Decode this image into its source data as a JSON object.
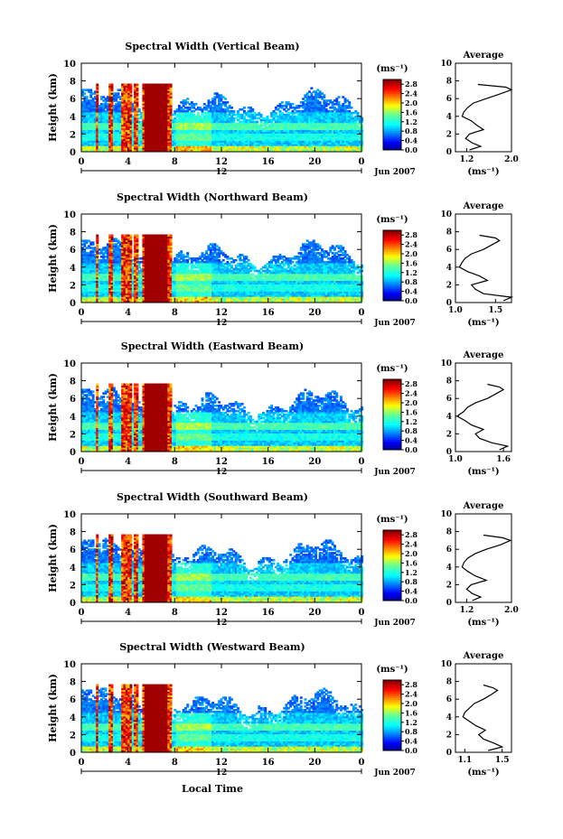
{
  "figure": {
    "xlabel": "Local Time",
    "date_label": "Jun 2007",
    "day_label": "12",
    "height_label": "Height (km)",
    "unit_label": "(ms⁻¹)",
    "average_title": "Average"
  },
  "chart_data": [
    {
      "type": "heatmap",
      "title": "Spectral Width (Vertical Beam)",
      "x_ticks": [
        "0",
        "4",
        "8",
        "12",
        "16",
        "20",
        "0"
      ],
      "y_ticks": [
        "0",
        "2",
        "4",
        "6",
        "8",
        "10"
      ],
      "xlim": [
        0,
        24
      ],
      "ylim": [
        0,
        10
      ],
      "colorbar_ticks": [
        "0.0",
        "0.4",
        "0.8",
        "1.2",
        "1.6",
        "2.0",
        "2.4",
        "2.8"
      ],
      "colorbar_range": [
        0,
        3.0
      ],
      "profile": {
        "type": "line",
        "xlim": [
          1.0,
          2.0
        ],
        "ylim": [
          0,
          10
        ],
        "x_ticks": [
          "1.2",
          "2.0"
        ],
        "x_tick_values": [
          1.2,
          2.0
        ],
        "y_ticks": [
          "0",
          "2",
          "4",
          "6",
          "8",
          "10"
        ],
        "heights": [
          0.2,
          0.6,
          1.0,
          1.5,
          2.0,
          2.5,
          3.0,
          3.5,
          4.0,
          4.5,
          5.0,
          5.5,
          6.0,
          6.5,
          7.0,
          7.3,
          7.6
        ],
        "values": [
          1.25,
          1.45,
          1.3,
          1.18,
          1.25,
          1.5,
          1.38,
          1.28,
          1.12,
          1.15,
          1.22,
          1.32,
          1.55,
          1.78,
          2.0,
          1.9,
          1.4
        ]
      }
    },
    {
      "type": "heatmap",
      "title": "Spectral Width (Northward Beam)",
      "x_ticks": [
        "0",
        "4",
        "8",
        "12",
        "16",
        "20",
        "0"
      ],
      "y_ticks": [
        "0",
        "2",
        "4",
        "6",
        "8",
        "10"
      ],
      "xlim": [
        0,
        24
      ],
      "ylim": [
        0,
        10
      ],
      "colorbar_ticks": [
        "0.0",
        "0.4",
        "0.8",
        "1.2",
        "1.6",
        "2.0",
        "2.4",
        "2.8"
      ],
      "colorbar_range": [
        0,
        3.0
      ],
      "profile": {
        "type": "line",
        "xlim": [
          1.0,
          1.7
        ],
        "ylim": [
          0,
          10
        ],
        "x_ticks": [
          "1.0",
          "1.5"
        ],
        "x_tick_values": [
          1.0,
          1.5
        ],
        "y_ticks": [
          "0",
          "2",
          "4",
          "6",
          "8",
          "10"
        ],
        "heights": [
          0.2,
          0.6,
          1.0,
          1.5,
          2.0,
          2.5,
          3.0,
          3.5,
          4.0,
          4.5,
          5.0,
          5.5,
          6.0,
          6.5,
          7.0,
          7.3,
          7.6
        ],
        "values": [
          1.6,
          1.7,
          1.35,
          1.25,
          1.2,
          1.4,
          1.3,
          1.15,
          1.05,
          1.08,
          1.12,
          1.2,
          1.35,
          1.45,
          1.55,
          1.5,
          1.3
        ]
      }
    },
    {
      "type": "heatmap",
      "title": "Spectral Width (Eastward Beam)",
      "x_ticks": [
        "0",
        "4",
        "8",
        "12",
        "16",
        "20",
        "0"
      ],
      "y_ticks": [
        "0",
        "2",
        "4",
        "6",
        "8",
        "10"
      ],
      "xlim": [
        0,
        24
      ],
      "ylim": [
        0,
        10
      ],
      "colorbar_ticks": [
        "0.0",
        "0.4",
        "0.8",
        "1.2",
        "1.6",
        "2.0",
        "2.4",
        "2.8"
      ],
      "colorbar_range": [
        0,
        3.0
      ],
      "profile": {
        "type": "line",
        "xlim": [
          1.0,
          1.7
        ],
        "ylim": [
          0,
          10
        ],
        "x_ticks": [
          "1.0",
          "1.6"
        ],
        "x_tick_values": [
          1.0,
          1.6
        ],
        "y_ticks": [
          "0",
          "2",
          "4",
          "6",
          "8",
          "10"
        ],
        "heights": [
          0.2,
          0.6,
          1.0,
          1.5,
          2.0,
          2.5,
          3.0,
          3.5,
          4.0,
          4.5,
          5.0,
          5.5,
          6.0,
          6.5,
          7.0,
          7.3,
          7.6
        ],
        "values": [
          1.55,
          1.65,
          1.45,
          1.3,
          1.25,
          1.35,
          1.2,
          1.12,
          1.02,
          1.1,
          1.15,
          1.25,
          1.4,
          1.5,
          1.6,
          1.55,
          1.4
        ]
      }
    },
    {
      "type": "heatmap",
      "title": "Spectral Width (Southward Beam)",
      "x_ticks": [
        "0",
        "4",
        "8",
        "12",
        "16",
        "20",
        "0"
      ],
      "y_ticks": [
        "0",
        "2",
        "4",
        "6",
        "8",
        "10"
      ],
      "xlim": [
        0,
        24
      ],
      "ylim": [
        0,
        10
      ],
      "colorbar_ticks": [
        "0.0",
        "0.4",
        "0.8",
        "1.2",
        "1.6",
        "2.0",
        "2.4",
        "2.8"
      ],
      "colorbar_range": [
        0,
        3.0
      ],
      "profile": {
        "type": "line",
        "xlim": [
          1.0,
          2.0
        ],
        "ylim": [
          0,
          10
        ],
        "x_ticks": [
          "1.2",
          "2.0"
        ],
        "x_tick_values": [
          1.2,
          2.0
        ],
        "y_ticks": [
          "0",
          "2",
          "4",
          "6",
          "8",
          "10"
        ],
        "heights": [
          0.2,
          0.6,
          1.0,
          1.5,
          2.0,
          2.5,
          3.0,
          3.5,
          4.0,
          4.5,
          5.0,
          5.5,
          6.0,
          6.5,
          7.0,
          7.3,
          7.6
        ],
        "values": [
          1.3,
          1.45,
          1.3,
          1.2,
          1.28,
          1.55,
          1.35,
          1.22,
          1.12,
          1.15,
          1.22,
          1.35,
          1.55,
          1.8,
          1.98,
          1.85,
          1.5
        ]
      }
    },
    {
      "type": "heatmap",
      "title": "Spectral Width (Westward Beam)",
      "x_ticks": [
        "0",
        "4",
        "8",
        "12",
        "16",
        "20",
        "0"
      ],
      "y_ticks": [
        "0",
        "2",
        "4",
        "6",
        "8",
        "10"
      ],
      "xlim": [
        0,
        24
      ],
      "ylim": [
        0,
        10
      ],
      "colorbar_ticks": [
        "0.0",
        "0.4",
        "0.8",
        "1.2",
        "1.6",
        "2.0",
        "2.4",
        "2.8"
      ],
      "colorbar_range": [
        0,
        3.0
      ],
      "profile": {
        "type": "line",
        "xlim": [
          1.0,
          1.6
        ],
        "ylim": [
          0,
          10
        ],
        "x_ticks": [
          "1.1",
          "1.5"
        ],
        "x_tick_values": [
          1.1,
          1.5
        ],
        "y_ticks": [
          "0",
          "2",
          "4",
          "6",
          "8",
          "10"
        ],
        "heights": [
          0.2,
          0.6,
          1.0,
          1.5,
          2.0,
          2.5,
          3.0,
          3.5,
          4.0,
          4.5,
          5.0,
          5.5,
          6.0,
          6.5,
          7.0,
          7.3,
          7.6
        ],
        "values": [
          1.35,
          1.5,
          1.42,
          1.3,
          1.25,
          1.32,
          1.22,
          1.15,
          1.08,
          1.1,
          1.15,
          1.2,
          1.3,
          1.38,
          1.45,
          1.4,
          1.3
        ]
      }
    }
  ]
}
